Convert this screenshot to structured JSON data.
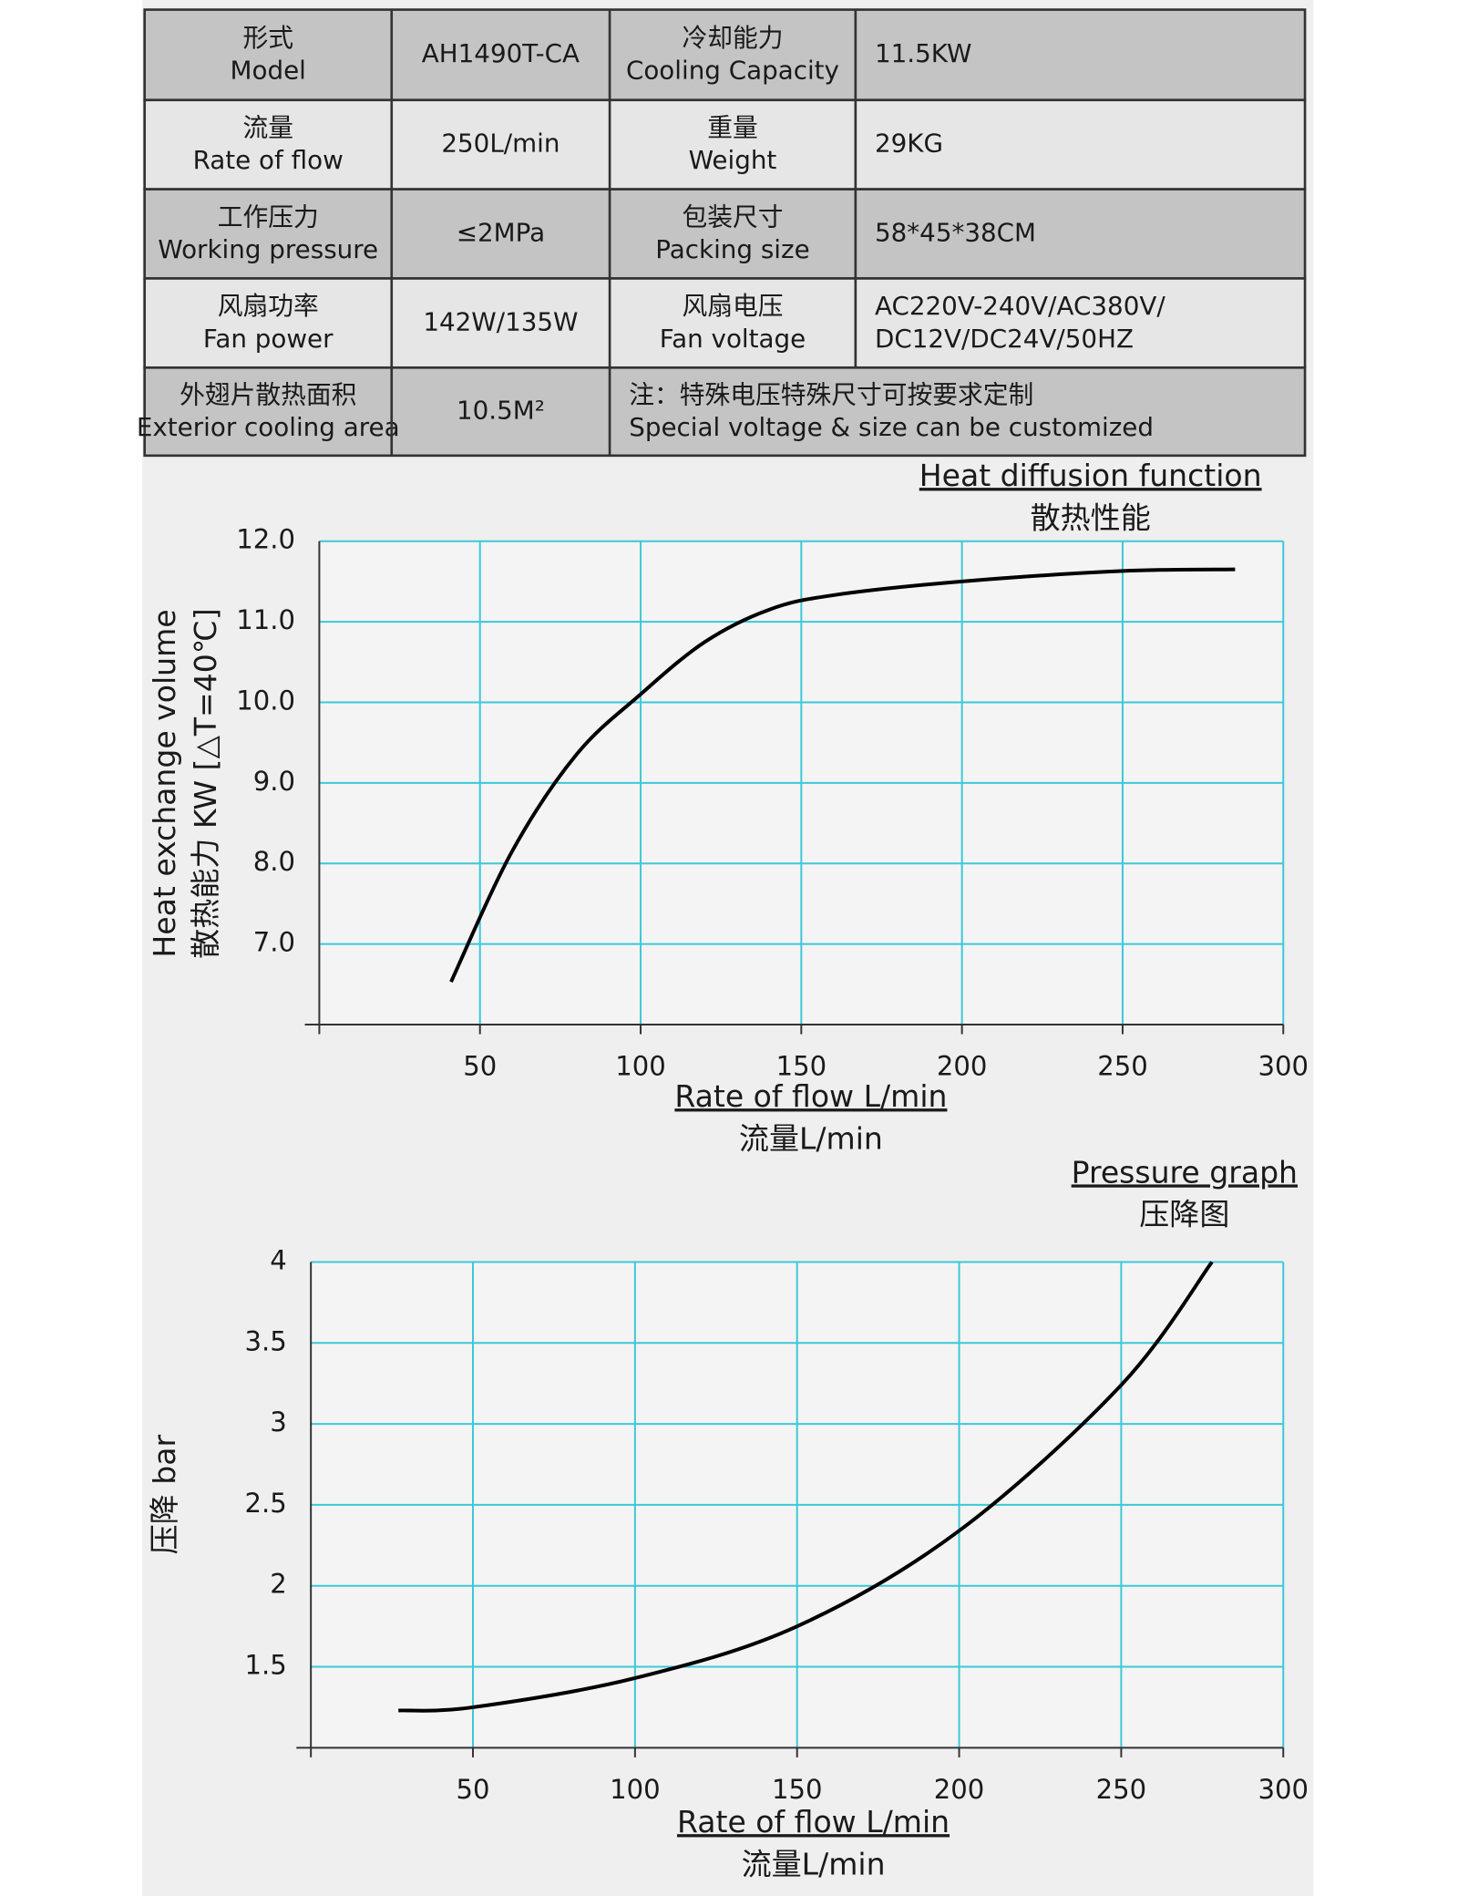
{
  "table": {
    "rows": [
      [
        [
          "形式",
          "Model"
        ],
        [
          "AH1490T-CA"
        ],
        [
          "冷却能力",
          "Cooling Capacity"
        ],
        [
          "11.5KW"
        ]
      ],
      [
        [
          "流量",
          "Rate of flow"
        ],
        [
          "250L/min"
        ],
        [
          "重量",
          "Weight"
        ],
        [
          "29KG"
        ]
      ],
      [
        [
          "工作压力",
          "Working pressure"
        ],
        [
          "≤2MPa"
        ],
        [
          "包装尺寸",
          "Packing size"
        ],
        [
          "58*45*38CM"
        ]
      ],
      [
        [
          "风扇功率",
          "Fan power"
        ],
        [
          "142W/135W"
        ],
        [
          "风扇电压",
          "Fan voltage"
        ],
        [
          "AC220V-240V/AC380V/",
          "DC12V/DC24V/50HZ"
        ]
      ],
      [
        [
          "外翅片散热面积",
          "Exterior cooling area"
        ],
        [
          "10.5M²"
        ],
        [
          "注：特殊电压特殊尺寸可按要求定制",
          "Special voltage & size can be customized"
        ]
      ]
    ]
  },
  "chart_data": [
    {
      "type": "line",
      "title": "Heat diffusion function",
      "subtitle": "散热性能",
      "x_label": "Rate of flow L/min",
      "x_label_sub": "流量L/min",
      "y_label": "Heat exchange volume",
      "y_label_sub": "散热能力 KW [△T=40℃]",
      "x": [
        41,
        60,
        80,
        100,
        120,
        140,
        160,
        200,
        250,
        285
      ],
      "series": [
        {
          "color": "#000000",
          "values": [
            6.53,
            8.15,
            9.35,
            10.1,
            10.75,
            11.15,
            11.33,
            11.5,
            11.63,
            11.65
          ]
        }
      ],
      "xlim": [
        0,
        300
      ],
      "xticks": [
        50,
        100,
        150,
        200,
        250,
        300
      ],
      "ylim": [
        6,
        12
      ],
      "yticks": [
        {
          "value": 7,
          "label": "7.0"
        },
        {
          "value": 8,
          "label": "8.0"
        },
        {
          "value": 9,
          "label": "9.0"
        },
        {
          "value": 10,
          "label": "10.0"
        },
        {
          "value": 11,
          "label": "11.0"
        },
        {
          "value": 12,
          "label": "12.0"
        }
      ],
      "grid": true,
      "grid_color": "#3cc8d8"
    },
    {
      "type": "line",
      "title": "Pressure graph",
      "subtitle": "压降图",
      "x_label": "Rate of flow L/min",
      "x_label_sub": "流量L/min",
      "y_label": "压降 bar",
      "x": [
        27,
        50,
        100,
        150,
        200,
        250,
        278
      ],
      "series": [
        {
          "color": "#000000",
          "values": [
            1.23,
            1.25,
            1.43,
            1.75,
            2.34,
            3.24,
            4.0
          ]
        }
      ],
      "xlim": [
        0,
        300
      ],
      "xticks": [
        50,
        100,
        150,
        200,
        250,
        300
      ],
      "ylim": [
        1,
        4
      ],
      "yticks": [
        1.5,
        2,
        {
          "value": 2.5,
          "label": "2.5"
        },
        3,
        {
          "value": 3.5,
          "label": "3.5"
        },
        4
      ],
      "grid": true,
      "grid_color": "#3cc8d8"
    }
  ]
}
